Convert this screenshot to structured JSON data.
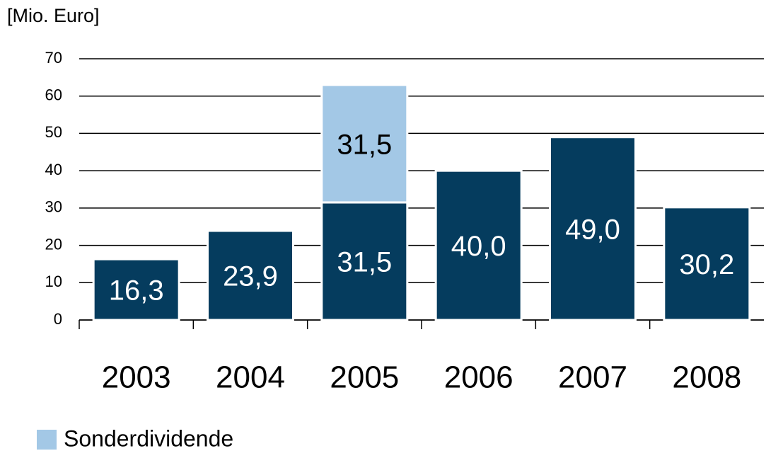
{
  "chart_data": {
    "type": "bar",
    "stacked": true,
    "y_axis_label": "[Mio. Euro]",
    "categories": [
      "2003",
      "2004",
      "2005",
      "2006",
      "2007",
      "2008"
    ],
    "series": [
      {
        "color": "#053c5e",
        "values": [
          16.3,
          23.9,
          31.5,
          40.0,
          49.0,
          30.2
        ],
        "value_labels": [
          "16,3",
          "23,9",
          "31,5",
          "40,0",
          "49,0",
          "30,2"
        ]
      },
      {
        "name": "Sonderdividende",
        "color": "#a3c8e6",
        "values": [
          null,
          null,
          31.5,
          null,
          null,
          null
        ],
        "value_labels": [
          null,
          null,
          "31,5",
          null,
          null,
          null
        ]
      }
    ],
    "ylim": [
      0,
      70
    ],
    "yticks": [
      0,
      10,
      20,
      30,
      40,
      50,
      60,
      70
    ],
    "grid": true,
    "legend": "bottom-left"
  }
}
